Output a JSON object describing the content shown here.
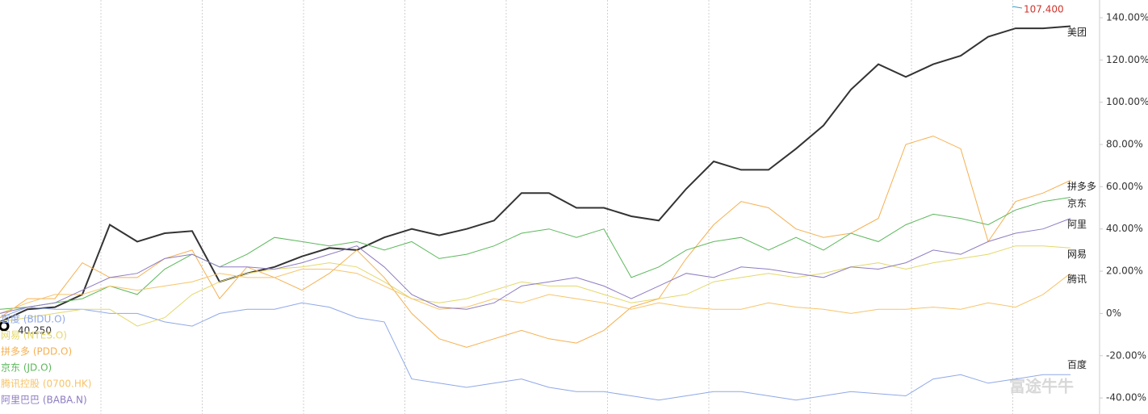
{
  "chart_data": {
    "type": "line",
    "ylim": [
      -47.6,
      148.4
    ],
    "yticks": [
      {
        "value": 140,
        "label": "140.00%"
      },
      {
        "value": 120,
        "label": "120.00%"
      },
      {
        "value": 100,
        "label": "100.00%"
      },
      {
        "value": 80,
        "label": "80.00%"
      },
      {
        "value": 60,
        "label": "60.00%"
      },
      {
        "value": 40,
        "label": "40.00%"
      },
      {
        "value": 20,
        "label": "20.00%"
      },
      {
        "value": 0,
        "label": "0%"
      },
      {
        "value": -20,
        "label": "-20.00%"
      },
      {
        "value": -40,
        "label": "-40.00%"
      }
    ],
    "series": [
      {
        "label": "美团",
        "color": "#333333",
        "values": [
          -4,
          2,
          3,
          9,
          42,
          34,
          38,
          39,
          15,
          19,
          22,
          27,
          31,
          30,
          36,
          40,
          37,
          40,
          44,
          57,
          57,
          50,
          50,
          46,
          44,
          59,
          72,
          68,
          68,
          78,
          89,
          106,
          118,
          112,
          118,
          122,
          131,
          135,
          135,
          136
        ]
      },
      {
        "name": "百度 (BIDU.O)",
        "label": "百度",
        "color": "#8fa8e8",
        "values": [
          -2,
          3,
          2,
          2,
          0,
          0,
          -4,
          -6,
          0,
          2,
          2,
          5,
          3,
          -2,
          -4,
          -31,
          -33,
          -35,
          -33,
          -31,
          -35,
          -37,
          -37,
          -39,
          -41,
          -39,
          -37,
          -37,
          -39,
          -41,
          -39,
          -37,
          -38,
          -39,
          -31,
          -29,
          -33,
          -31,
          -29,
          -29
        ]
      },
      {
        "name": "网易 (NTES.O)",
        "label": "网易",
        "color": "#e3d86a",
        "values": [
          -4,
          -2,
          0,
          2,
          2,
          -6,
          -2,
          9,
          15,
          19,
          21,
          22,
          24,
          22,
          15,
          7,
          5,
          7,
          11,
          15,
          13,
          13,
          9,
          5,
          7,
          9,
          15,
          17,
          19,
          17,
          19,
          22,
          24,
          21,
          24,
          26,
          28,
          32,
          32,
          31
        ]
      },
      {
        "name": "拼多多 (PDD.O)",
        "label": "拼多多",
        "color": "#f5b050",
        "values": [
          -2,
          7,
          7,
          24,
          17,
          17,
          26,
          30,
          7,
          22,
          17,
          11,
          19,
          30,
          17,
          0,
          -12,
          -16,
          -12,
          -8,
          -12,
          -14,
          -8,
          3,
          7,
          26,
          42,
          53,
          50,
          40,
          36,
          38,
          45,
          80,
          84,
          78,
          34,
          53,
          57,
          63
        ]
      },
      {
        "name": "京东 (JD.O)",
        "label": "京东",
        "color": "#5cb85c",
        "values": [
          2,
          3,
          5,
          7,
          13,
          9,
          21,
          28,
          22,
          28,
          36,
          34,
          32,
          34,
          30,
          34,
          26,
          28,
          32,
          38,
          40,
          36,
          40,
          17,
          22,
          30,
          34,
          36,
          30,
          36,
          30,
          38,
          34,
          42,
          47,
          45,
          42,
          49,
          53,
          55
        ]
      },
      {
        "name": "腾讯控股 (0700.HK)",
        "label": "腾讯",
        "color": "#f7c46a",
        "values": [
          0,
          5,
          9,
          9,
          13,
          11,
          13,
          15,
          19,
          17,
          17,
          21,
          21,
          19,
          13,
          7,
          2,
          3,
          7,
          5,
          9,
          7,
          5,
          2,
          5,
          3,
          2,
          2,
          5,
          3,
          2,
          0,
          2,
          2,
          3,
          2,
          5,
          3,
          9,
          19
        ]
      },
      {
        "name": "阿里巴巴 (BABA.N)",
        "label": "阿里",
        "color": "#8e7cc3",
        "values": [
          0,
          3,
          5,
          11,
          17,
          19,
          26,
          28,
          22,
          22,
          21,
          24,
          28,
          32,
          22,
          9,
          3,
          2,
          5,
          13,
          15,
          17,
          13,
          7,
          13,
          19,
          17,
          22,
          21,
          19,
          17,
          22,
          21,
          24,
          30,
          28,
          34,
          38,
          40,
          45
        ]
      }
    ],
    "annotations": [
      {
        "text": "107.400"
      },
      {
        "text": "40.250"
      }
    ],
    "watermark": "富途牛牛"
  }
}
